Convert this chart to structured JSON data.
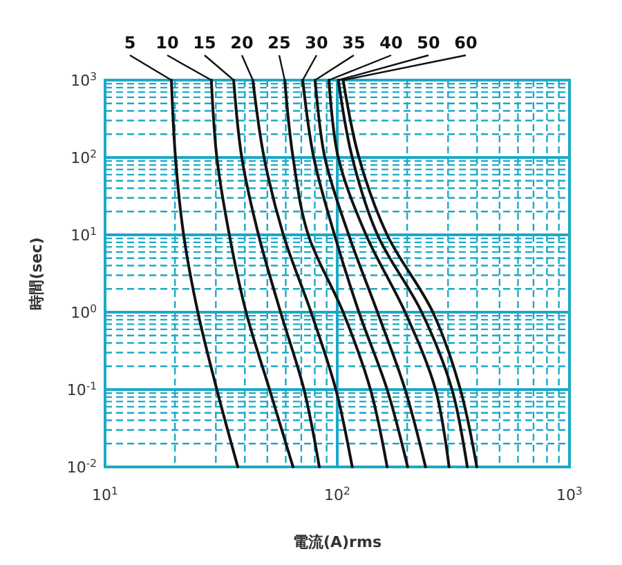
{
  "chart_data": {
    "type": "line",
    "xlabel": "電流(A)rms",
    "ylabel": "時間(sec)",
    "log": "xy",
    "grid": true,
    "legend": false,
    "line_style": "solid",
    "xlim": [
      10,
      1000
    ],
    "xticks": [
      {
        "value": 10,
        "label": "10$^{1}$"
      },
      {
        "value": 20,
        "label": null
      },
      {
        "value": 30,
        "label": null
      },
      {
        "value": 40,
        "label": null
      },
      {
        "value": 50,
        "label": null
      },
      {
        "value": 60,
        "label": null
      },
      {
        "value": 70,
        "label": null
      },
      {
        "value": 80,
        "label": null
      },
      {
        "value": 90,
        "label": null
      },
      {
        "value": 100,
        "label": "10$^{2}$"
      },
      {
        "value": 200,
        "label": null
      },
      {
        "value": 300,
        "label": null
      },
      {
        "value": 400,
        "label": null
      },
      {
        "value": 500,
        "label": null
      },
      {
        "value": 600,
        "label": null
      },
      {
        "value": 700,
        "label": null
      },
      {
        "value": 800,
        "label": null
      },
      {
        "value": 900,
        "label": null
      },
      {
        "value": 1000,
        "label": "10$^{3}$"
      }
    ],
    "ylim": [
      0.01,
      1000
    ],
    "yticks": [
      {
        "value": 0.01,
        "label": "10$^{-2}$"
      },
      {
        "value": 0.02,
        "label": null
      },
      {
        "value": 0.03,
        "label": null
      },
      {
        "value": 0.04,
        "label": null
      },
      {
        "value": 0.05,
        "label": null
      },
      {
        "value": 0.06,
        "label": null
      },
      {
        "value": 0.07,
        "label": null
      },
      {
        "value": 0.08,
        "label": null
      },
      {
        "value": 0.09,
        "label": null
      },
      {
        "value": 0.1,
        "label": "10$^{-1}$"
      },
      {
        "value": 0.2,
        "label": null
      },
      {
        "value": 0.3,
        "label": null
      },
      {
        "value": 0.4,
        "label": null
      },
      {
        "value": 0.5,
        "label": null
      },
      {
        "value": 0.6,
        "label": null
      },
      {
        "value": 0.7,
        "label": null
      },
      {
        "value": 0.8,
        "label": null
      },
      {
        "value": 0.9,
        "label": null
      },
      {
        "value": 1,
        "label": "10$^{0}$"
      },
      {
        "value": 2,
        "label": null
      },
      {
        "value": 3,
        "label": null
      },
      {
        "value": 4,
        "label": null
      },
      {
        "value": 5,
        "label": null
      },
      {
        "value": 6,
        "label": null
      },
      {
        "value": 7,
        "label": null
      },
      {
        "value": 8,
        "label": null
      },
      {
        "value": 9,
        "label": null
      },
      {
        "value": 10,
        "label": "10$^{1}$"
      },
      {
        "value": 20,
        "label": null
      },
      {
        "value": 30,
        "label": null
      },
      {
        "value": 40,
        "label": null
      },
      {
        "value": 50,
        "label": null
      },
      {
        "value": 60,
        "label": null
      },
      {
        "value": 70,
        "label": null
      },
      {
        "value": 80,
        "label": null
      },
      {
        "value": 90,
        "label": null
      },
      {
        "value": 100,
        "label": "10$^{2}$"
      },
      {
        "value": 200,
        "label": null
      },
      {
        "value": 300,
        "label": null
      },
      {
        "value": 400,
        "label": null
      },
      {
        "value": 500,
        "label": null
      },
      {
        "value": 600,
        "label": null
      },
      {
        "value": 700,
        "label": null
      },
      {
        "value": 800,
        "label": null
      },
      {
        "value": 900,
        "label": null
      },
      {
        "value": 1000,
        "label": "10$^{3}$"
      }
    ],
    "series": [
      {
        "name": "5",
        "color": "#111111",
        "x": [
          19.3,
          20.1,
          21.8,
          25.1,
          30.3,
          37.3
        ],
        "values": [
          1000,
          100,
          10,
          1,
          0.1,
          0.01
        ]
      },
      {
        "name": "10",
        "color": "#111111",
        "x": [
          28.7,
          30.3,
          34.3,
          40.5,
          51.1,
          64.5
        ],
        "values": [
          1000,
          100,
          10,
          1,
          0.1,
          0.01
        ]
      },
      {
        "name": "15",
        "color": "#111111",
        "x": [
          35.8,
          38.8,
          45.8,
          57.0,
          71.9,
          83.7
        ],
        "values": [
          1000,
          100,
          10,
          1,
          0.1,
          0.01
        ]
      },
      {
        "name": "20",
        "color": "#111111",
        "x": [
          43.3,
          48.4,
          58.6,
          77.1,
          98.6,
          116
        ],
        "values": [
          1000,
          100,
          10,
          1,
          0.1,
          0.01
        ]
      },
      {
        "name": "25",
        "color": "#111111",
        "x": [
          59.4,
          64.5,
          75.0,
          106,
          139,
          164
        ],
        "values": [
          1000,
          100,
          10,
          1,
          0.1,
          0.01
        ]
      },
      {
        "name": "30",
        "color": "#111111",
        "x": [
          71.0,
          79.2,
          97.3,
          124,
          164,
          201
        ],
        "values": [
          1000,
          100,
          10,
          1,
          0.1,
          0.01
        ]
      },
      {
        "name": "35",
        "color": "#111111",
        "x": [
          80.3,
          88.4,
          112,
          149,
          196,
          240
        ],
        "values": [
          1000,
          100,
          10,
          1,
          0.1,
          0.01
        ]
      },
      {
        "name": "40",
        "color": "#111111",
        "x": [
          92.1,
          101,
          133,
          196,
          265,
          303
        ],
        "values": [
          1000,
          100,
          10,
          1,
          0.1,
          0.01
        ]
      },
      {
        "name": "50",
        "color": "#111111",
        "x": [
          101,
          116,
          149,
          231,
          312,
          363
        ],
        "values": [
          1000,
          100,
          10,
          1,
          0.1,
          0.01
        ]
      },
      {
        "name": "60",
        "color": "#111111",
        "x": [
          106,
          124,
          164,
          258,
          339,
          399
        ],
        "values": [
          1000,
          100,
          10,
          1,
          0.1,
          0.01
        ]
      }
    ]
  }
}
